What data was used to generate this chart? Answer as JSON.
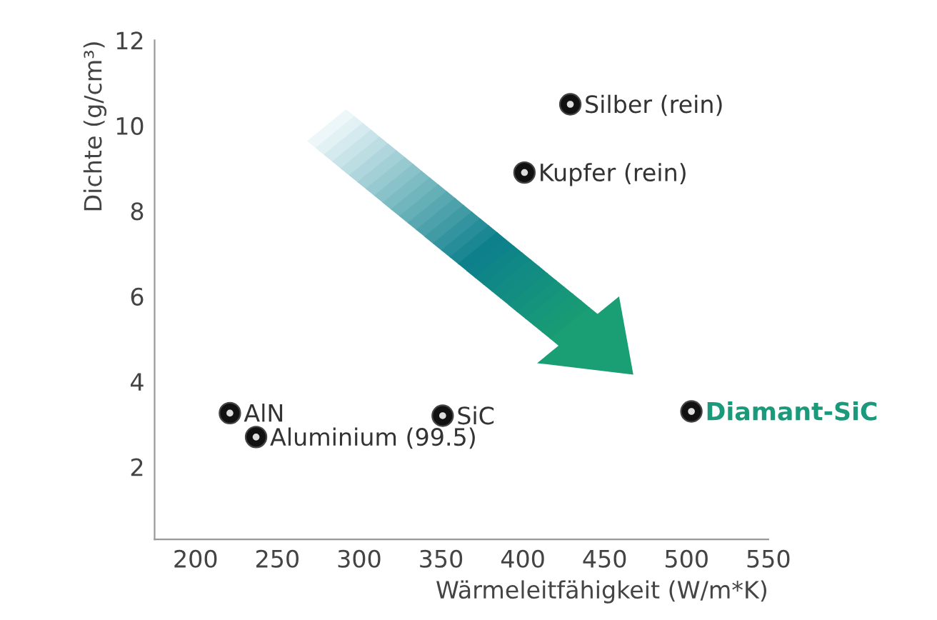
{
  "chart_data": {
    "type": "scatter",
    "xlabel": "Wärmeleitfähigkeit (W/m*K)",
    "ylabel": "Dichte (g/cm³)",
    "x": [
      221,
      237,
      351,
      401,
      429,
      503
    ],
    "values": [
      3.26,
      2.7,
      3.2,
      8.9,
      10.5,
      3.3
    ],
    "color": "#111111",
    "marker": "circle",
    "grid": false,
    "legend": false,
    "xlim": [
      175,
      550
    ],
    "xticks": [
      200,
      250,
      300,
      350,
      400,
      450,
      500,
      550
    ],
    "ylim": [
      0.3,
      12
    ],
    "yticks": [
      2,
      4,
      6,
      8,
      10,
      12
    ],
    "annotations": [
      {
        "text": "AlN",
        "x": 221,
        "y": 3.26
      },
      {
        "text": "Aluminium (99.5)",
        "x": 237,
        "y": 2.7
      },
      {
        "text": "SiC",
        "x": 351,
        "y": 3.2
      },
      {
        "text": "Kupfer (rein)",
        "x": 401,
        "y": 8.9
      },
      {
        "text": "Silber (rein)",
        "x": 429,
        "y": 10.5
      },
      {
        "text": "Diamant-SiC",
        "x": 503,
        "y": 3.3
      }
    ]
  }
}
